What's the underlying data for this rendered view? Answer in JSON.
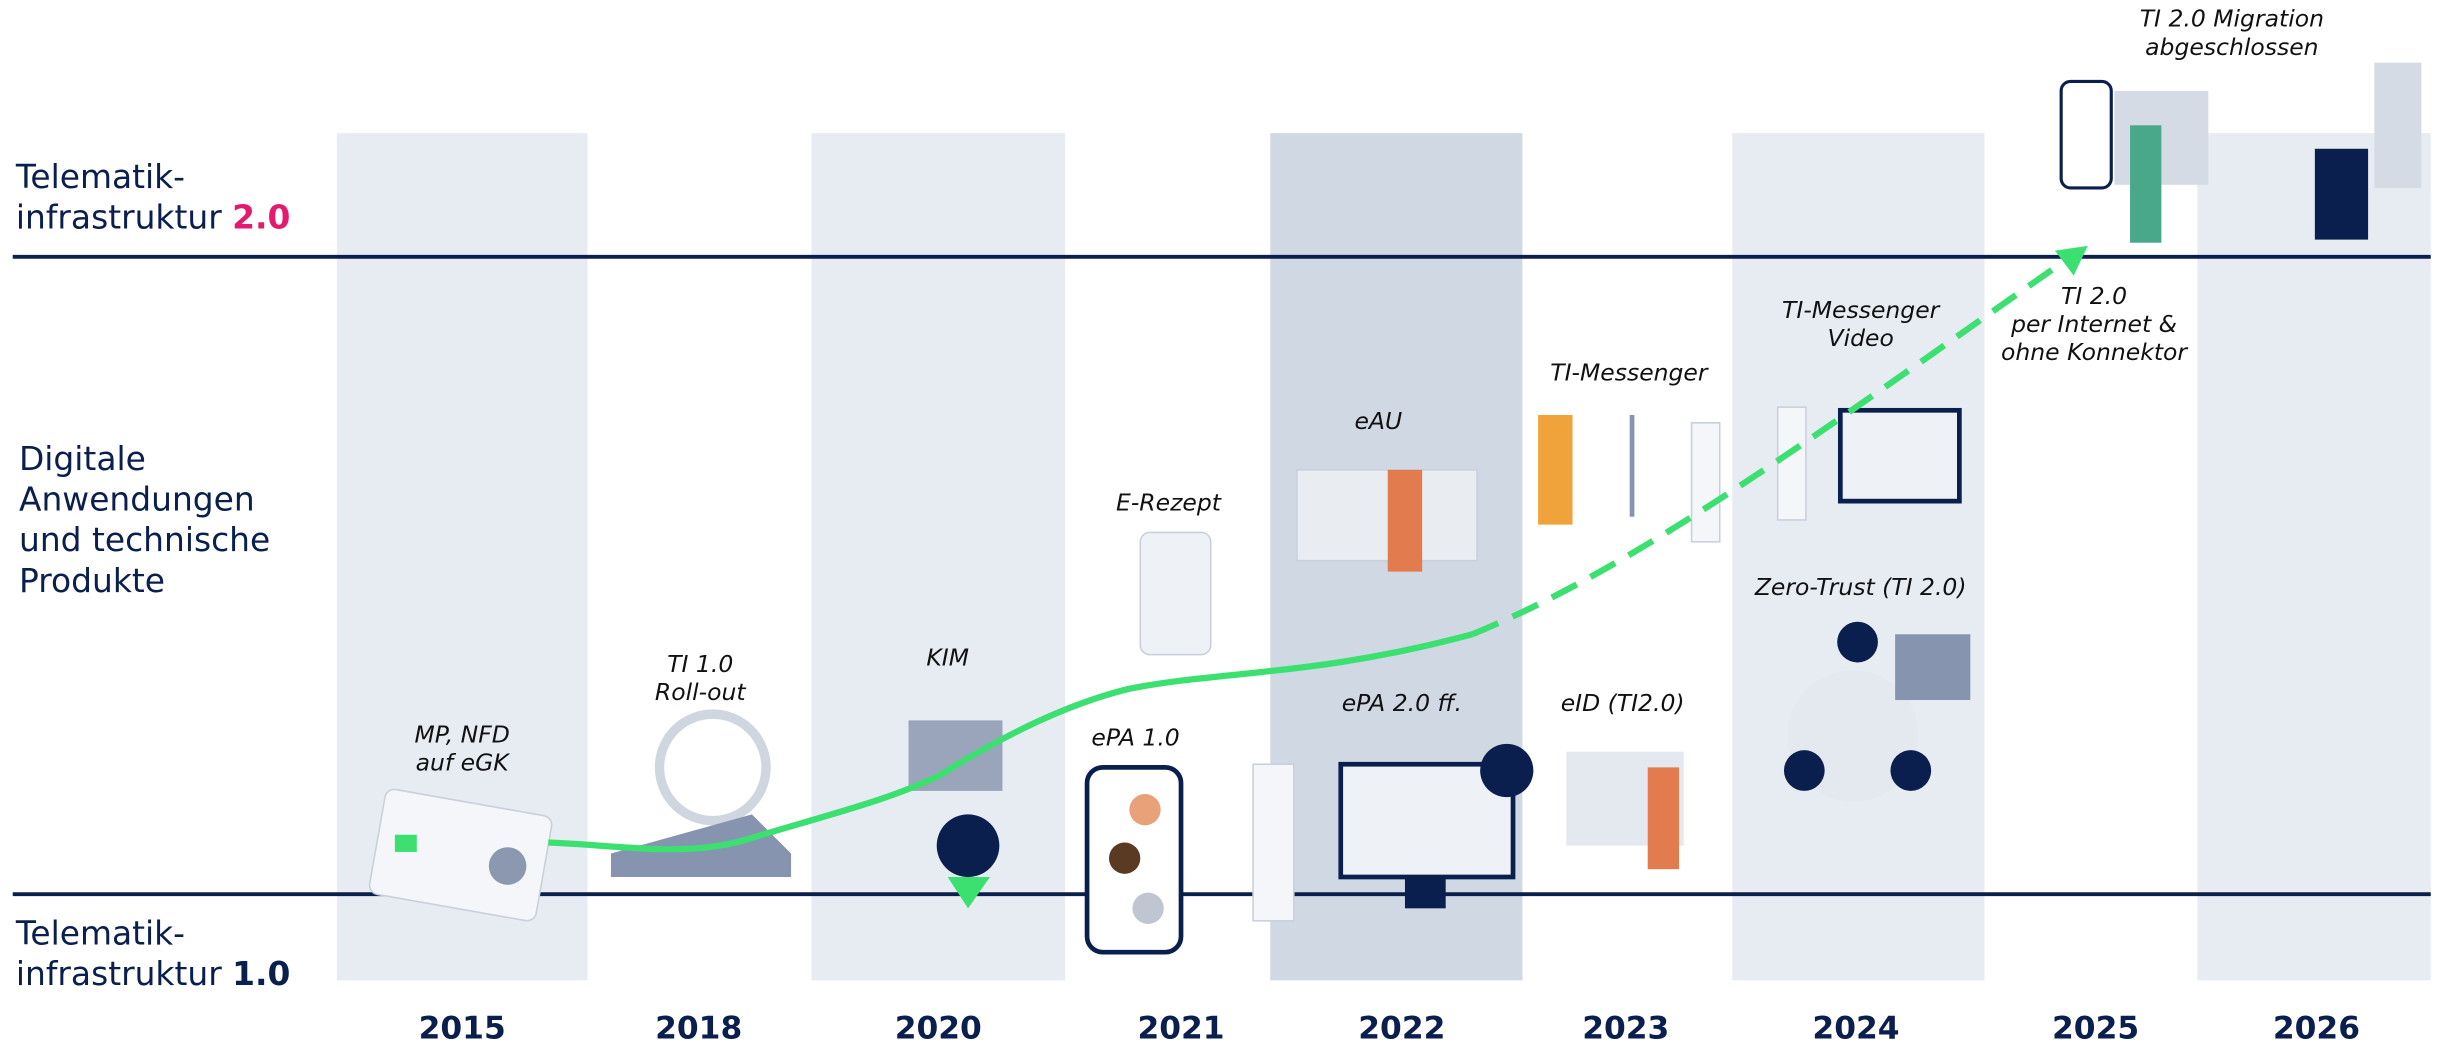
{
  "levels": {
    "ti2": {
      "line1": "Telematik-",
      "line2": "infrastruktur",
      "version": "2.0"
    },
    "middle": [
      "Digitale",
      "Anwendungen",
      "und technische",
      "Produkte"
    ],
    "ti1": {
      "line1": "Telematik-",
      "line2": "infrastruktur",
      "version": "1.0"
    }
  },
  "years": [
    "2015",
    "2018",
    "2020",
    "2021",
    "2022",
    "2023",
    "2024",
    "2025",
    "2026"
  ],
  "milestones": [
    {
      "lines": [
        "MP, NFD",
        "auf eGK"
      ]
    },
    {
      "lines": [
        "TI 1.0",
        "Roll-out"
      ]
    },
    {
      "lines": [
        "KIM"
      ]
    },
    {
      "lines": [
        "ePA 1.0"
      ]
    },
    {
      "lines": [
        "E-Rezept"
      ]
    },
    {
      "lines": [
        "eAU"
      ]
    },
    {
      "lines": [
        "ePA 2.0 ff."
      ]
    },
    {
      "lines": [
        "TI-Messenger"
      ]
    },
    {
      "lines": [
        "eID (TI2.0)"
      ]
    },
    {
      "lines": [
        "TI-Messenger",
        "Video"
      ]
    },
    {
      "lines": [
        "Zero-Trust (TI 2.0)"
      ]
    },
    {
      "lines": [
        "TI 2.0",
        "per Internet &",
        "ohne Konnektor"
      ]
    },
    {
      "lines": [
        "TI 2.0 Migration",
        "abgeschlossen"
      ]
    }
  ]
}
